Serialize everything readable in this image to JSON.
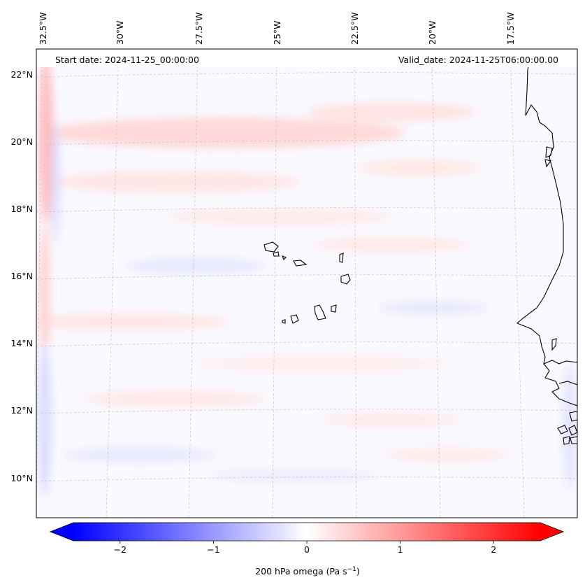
{
  "map": {
    "start_date": "Start date: 2024-11-25_00:00:00",
    "valid_date": "Valid_date: 2024-11-25T06:00:00.00",
    "lon_labels": [
      "32.5°W",
      "30°W",
      "27.5°W",
      "25°W",
      "22.5°W",
      "20°W",
      "17.5°W"
    ],
    "lat_labels": [
      "22°N",
      "20°N",
      "18°N",
      "16°N",
      "14°N",
      "12°N",
      "10°N"
    ],
    "extent": {
      "lon_min": -33.0,
      "lon_max": -16.0,
      "lat_min": 8.9,
      "lat_max": 22.7
    },
    "gridlines": true,
    "colors": {
      "negative": "#0000ff",
      "zero": "#ffffff",
      "positive": "#ff0000",
      "coast": "#000000",
      "grid": "#b0b0b0"
    }
  },
  "colorbar": {
    "label_text": "200 hPa omega (Pa s",
    "label_exp": "−1",
    "label_close": ")",
    "ticks": [
      "−2",
      "−1",
      "0",
      "1",
      "2"
    ],
    "tick_values": [
      -2,
      -1,
      0,
      1,
      2
    ],
    "vmin": -2.5,
    "vmax": 2.5,
    "extend": "both"
  }
}
